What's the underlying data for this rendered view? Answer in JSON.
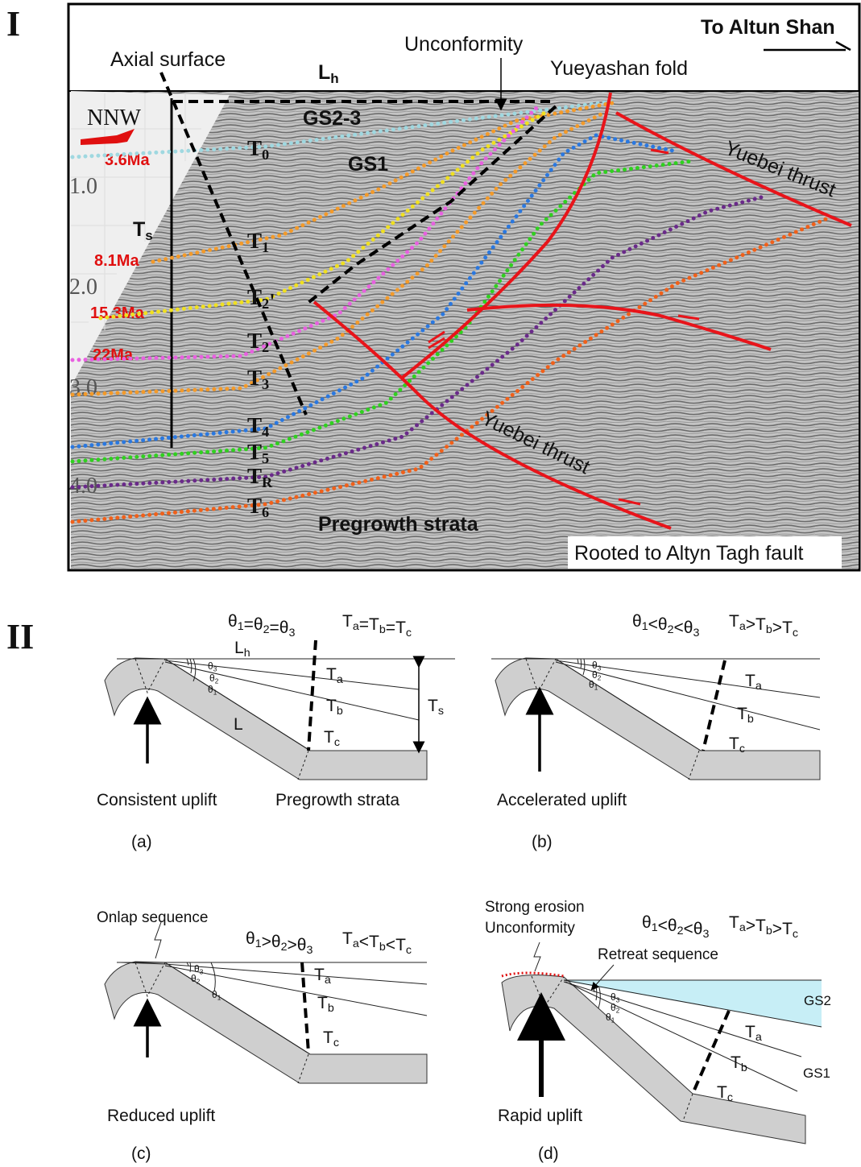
{
  "panel_I": {
    "label": "I",
    "to_altun_shan": "To Altun Shan",
    "axial_surface": "Axial surface",
    "unconformity": "Unconformity",
    "lh": "Lh",
    "yueyashan_fold": "Yueyashan fold",
    "direction": "NNW",
    "ages": [
      "3.6Ma",
      "8.1Ma",
      "15.3Ma",
      "22Ma"
    ],
    "depths": [
      "1.0",
      "2.0",
      "3.0",
      "4.0"
    ],
    "ts": "Ts",
    "units": [
      "GS2-3",
      "GS1"
    ],
    "horizons": [
      "T0",
      "T1",
      "T2'",
      "T2",
      "T3",
      "T4",
      "T5",
      "TR",
      "T6"
    ],
    "faults": [
      "Yuebei thrust",
      "Yuebei thrust"
    ],
    "pregrowth": "Pregrowth strata",
    "rooted": "Rooted to Altyn Tagh fault"
  },
  "panel_II": {
    "label": "II",
    "a": {
      "relation": "θ1=θ2=θ3",
      "thickness": "Ta=Tb=Tc",
      "lh": "Lh",
      "l": "L",
      "ts": "Ts",
      "angles": [
        "θ3",
        "θ2",
        "θ1"
      ],
      "intervals": [
        "Ta",
        "Tb",
        "Tc"
      ],
      "caption": "Consistent uplift",
      "pregrowth": "Pregrowth strata",
      "tag": "(a)"
    },
    "b": {
      "relation": "θ1<θ2<θ3",
      "thickness": "Ta>Tb>Tc",
      "angles": [
        "θ3",
        "θ2",
        "θ1"
      ],
      "intervals": [
        "Ta",
        "Tb",
        "Tc"
      ],
      "caption": "Accelerated uplift",
      "tag": "(b)"
    },
    "c": {
      "note": "Onlap sequence",
      "relation": "θ1>θ2>θ3",
      "thickness": "Ta<Tb<Tc",
      "angles": [
        "θ3",
        "θ2",
        "θ1"
      ],
      "intervals": [
        "Ta",
        "Tb",
        "Tc"
      ],
      "caption": "Reduced uplift",
      "tag": "(c)"
    },
    "d": {
      "notes": [
        "Strong erosion",
        "Unconformity"
      ],
      "retreat": "Retreat sequence",
      "relation": "θ1<θ2<θ3",
      "thickness": "Ta>Tb>Tc",
      "angles": [
        "θ3",
        "θ2",
        "θ1"
      ],
      "intervals": [
        "Ta",
        "Tb",
        "Tc"
      ],
      "units": [
        "GS2",
        "GS1"
      ],
      "caption": "Rapid uplift",
      "tag": "(d)"
    }
  }
}
